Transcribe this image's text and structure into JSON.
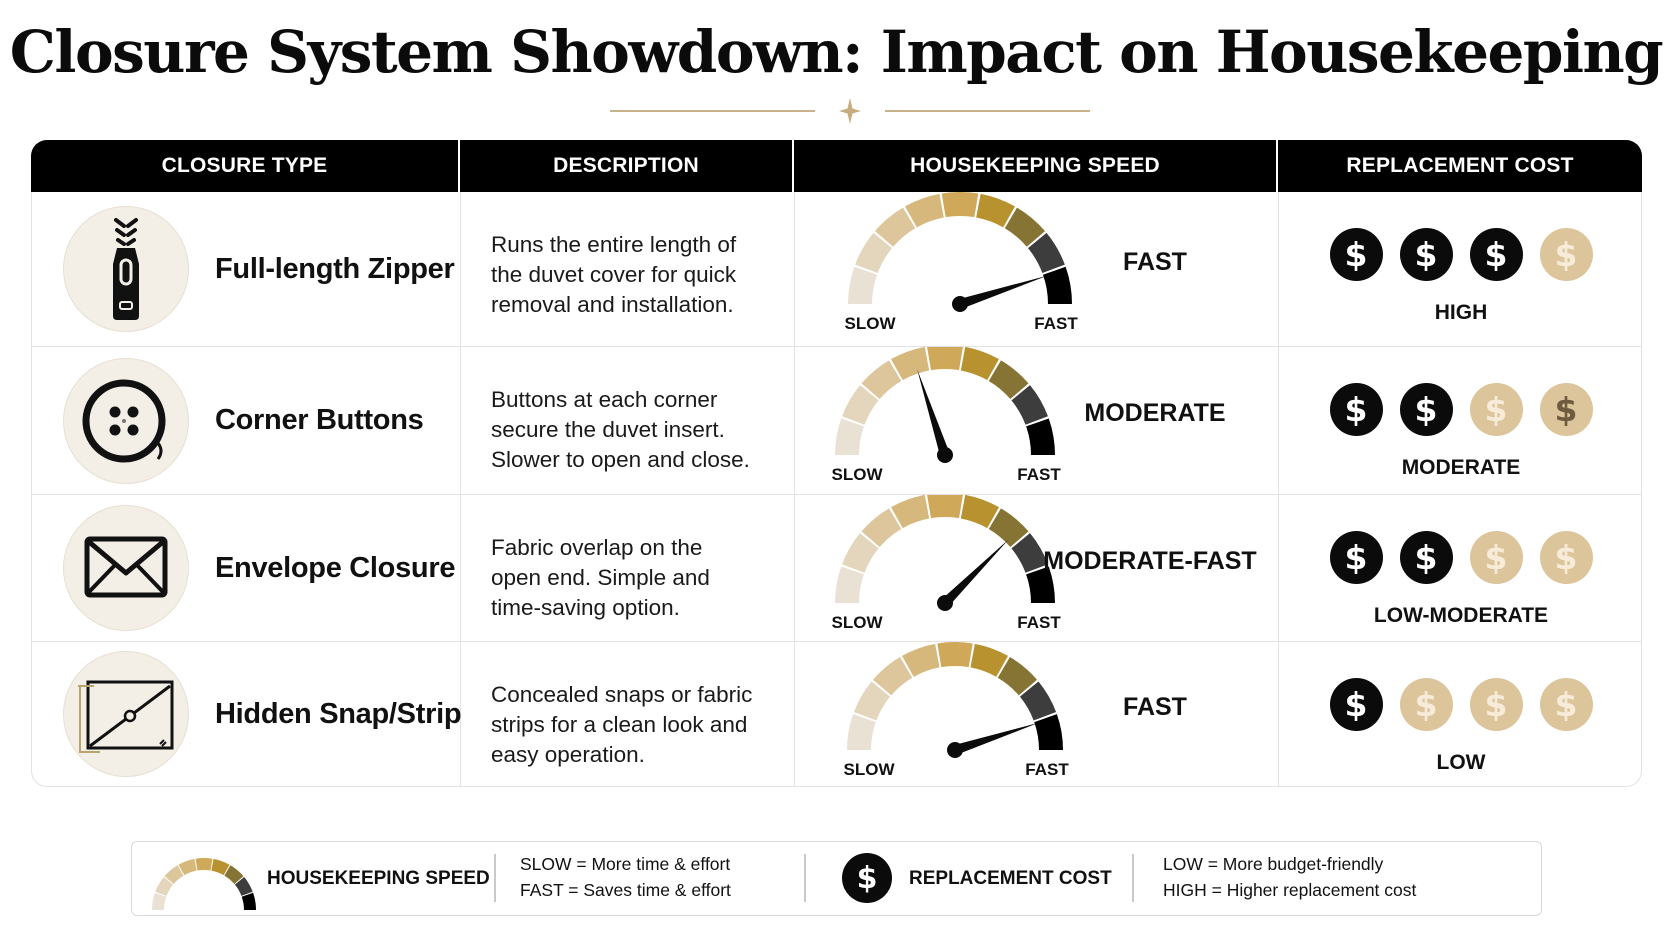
{
  "title": "Closure System Showdown: Impact on Housekeeping",
  "headers": [
    "CLOSURE TYPE",
    "DESCRIPTION",
    "HOUSEKEEPING SPEED",
    "REPLACEMENT COST"
  ],
  "gauge_ends": {
    "slow": "SLOW",
    "fast": "FAST"
  },
  "currency_symbol": "$",
  "rows": [
    {
      "icon": "zipper-icon",
      "name": "Full-length Zipper",
      "description": [
        "Runs the entire length of",
        "the duvet cover for quick",
        "removal and installation."
      ],
      "speed_label": "FAST",
      "speed_level": 0.9,
      "cost_filled": 3,
      "cost_total": 4,
      "cost_label": "HIGH"
    },
    {
      "icon": "button-icon",
      "name": "Corner Buttons",
      "description": [
        "Buttons at each corner",
        "secure the duvet insert.",
        "Slower to open and close."
      ],
      "speed_label": "MODERATE",
      "speed_level": 0.4,
      "cost_filled": 2,
      "cost_total": 4,
      "cost_label": "MODERATE"
    },
    {
      "icon": "envelope-icon",
      "name": "Envelope Closure",
      "description": [
        "Fabric overlap on the",
        "open end. Simple and",
        "time-saving option."
      ],
      "speed_label": "MODERATE-FAST",
      "speed_level": 0.75,
      "cost_filled": 2,
      "cost_total": 4,
      "cost_label": "LOW-MODERATE"
    },
    {
      "icon": "snap-strip-icon",
      "name": "Hidden Snap/Strip",
      "description": [
        "Concealed snaps or fabric",
        "strips for a clean look and",
        "easy operation."
      ],
      "speed_label": "FAST",
      "speed_level": 0.9,
      "cost_filled": 1,
      "cost_total": 4,
      "cost_label": "LOW"
    }
  ],
  "legend": {
    "speed_title": "HOUSEKEEPING SPEED",
    "speed_lines": [
      "SLOW = More time & effort",
      "FAST = Saves time & effort"
    ],
    "cost_title": "REPLACEMENT COST",
    "cost_lines": [
      "LOW = More budget-friendly",
      "HIGH = Higher replacement cost"
    ]
  },
  "colors": {
    "header_bg": "#000000",
    "gauge_segments": [
      "#e8e1d4",
      "#e3d6bd",
      "#ddc69c",
      "#d6b87c",
      "#cfa85a",
      "#b8922f",
      "#857434",
      "#3d3d3d",
      "#000000"
    ],
    "coin_filled": "#0b0b0b",
    "coin_empty": "#dcc49b",
    "icon_circle": "#f4efe6"
  }
}
